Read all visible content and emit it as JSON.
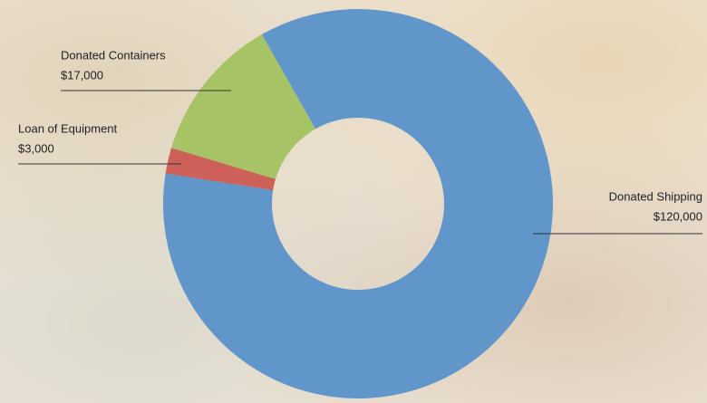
{
  "chart_data": {
    "type": "donut",
    "categories": [
      "Donated Shipping",
      "Loan of Equipment",
      "Donated Containers"
    ],
    "values": [
      120000,
      3000,
      17000
    ],
    "value_labels": [
      "$120,000",
      "$3,000",
      "$17,000"
    ],
    "colors": [
      "#6096c9",
      "#cd6058",
      "#a6c466"
    ]
  }
}
